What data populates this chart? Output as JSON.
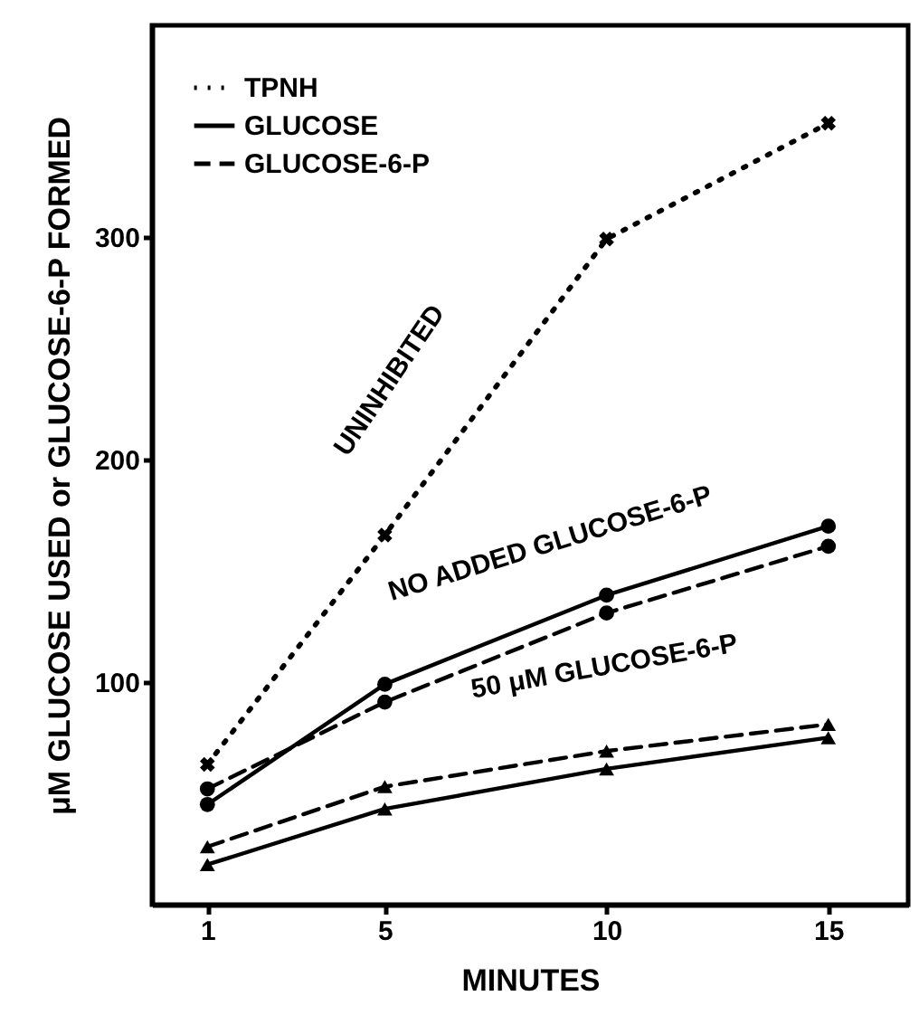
{
  "chart_data": {
    "type": "line",
    "xlabel": "MINUTES",
    "ylabel": "μM GLUCOSE USED or GLUCOSE-6-P FORMED",
    "x": [
      1,
      5,
      10,
      15
    ],
    "xlim": [
      -0.25,
      16.8
    ],
    "xticks": [
      1,
      5,
      10,
      15
    ],
    "ylim": [
      0,
      395
    ],
    "yticks": [
      100,
      200,
      300
    ],
    "grid": false,
    "legend": "top left",
    "series": [
      {
        "name": "TPNH",
        "color": "#000000",
        "line_style": "dotted",
        "marker": "cross",
        "values": [
          63,
          166,
          299,
          351
        ]
      },
      {
        "name": "GLUCOSE",
        "color": "#000000",
        "line_style": "solid",
        "marker": "circle",
        "values": [
          45,
          99,
          139,
          170
        ]
      },
      {
        "name": "GLUCOSE-6-P",
        "color": "#000000",
        "line_style": "dashed",
        "marker": "circle",
        "values": [
          52,
          91,
          131,
          161
        ]
      },
      {
        "color": "#000000",
        "line_style": "solid",
        "marker": "triangle",
        "values": [
          18,
          43,
          61,
          75
        ]
      },
      {
        "color": "#000000",
        "line_style": "dashed",
        "marker": "triangle",
        "values": [
          26,
          53,
          69,
          81
        ]
      }
    ],
    "annotations": [
      "UNINHIBITED",
      "NO ADDED GLUCOSE-6-P",
      "50 μM GLUCOSE-6-P"
    ]
  }
}
